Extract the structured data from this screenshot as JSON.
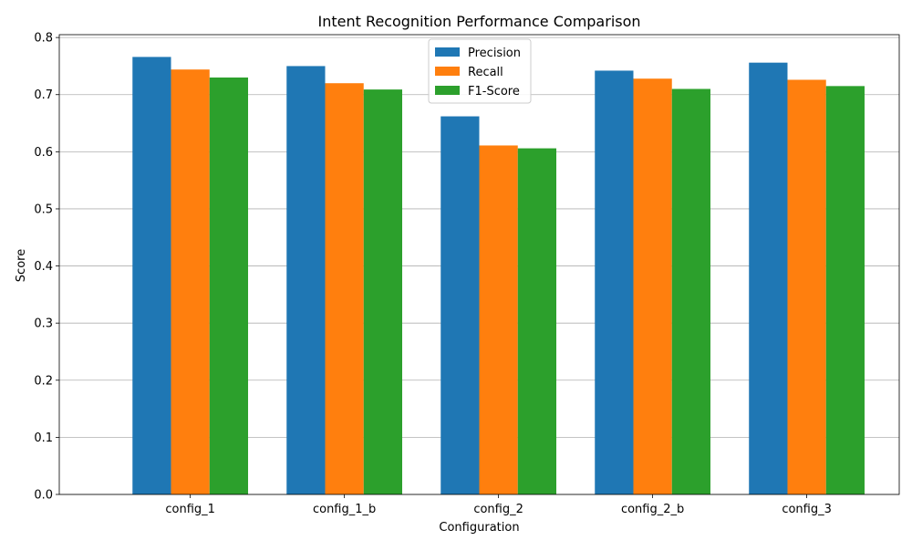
{
  "chart_data": {
    "type": "bar",
    "title": "Intent Recognition Performance Comparison",
    "xlabel": "Configuration",
    "ylabel": "Score",
    "categories": [
      "config_1",
      "config_1_b",
      "config_2",
      "config_2_b",
      "config_3"
    ],
    "series": [
      {
        "name": "Precision",
        "color": "#1f77b4",
        "values": [
          0.766,
          0.75,
          0.662,
          0.742,
          0.756
        ]
      },
      {
        "name": "Recall",
        "color": "#ff7f0e",
        "values": [
          0.744,
          0.72,
          0.611,
          0.728,
          0.726
        ]
      },
      {
        "name": "F1-Score",
        "color": "#2ca02c",
        "values": [
          0.73,
          0.709,
          0.606,
          0.71,
          0.715
        ]
      }
    ],
    "ylim": [
      0,
      0.805
    ],
    "yticks": [
      "0.0",
      "0.1",
      "0.2",
      "0.3",
      "0.4",
      "0.5",
      "0.6",
      "0.7",
      "0.8"
    ],
    "grid": "horizontal",
    "legend_position": "top-center"
  }
}
